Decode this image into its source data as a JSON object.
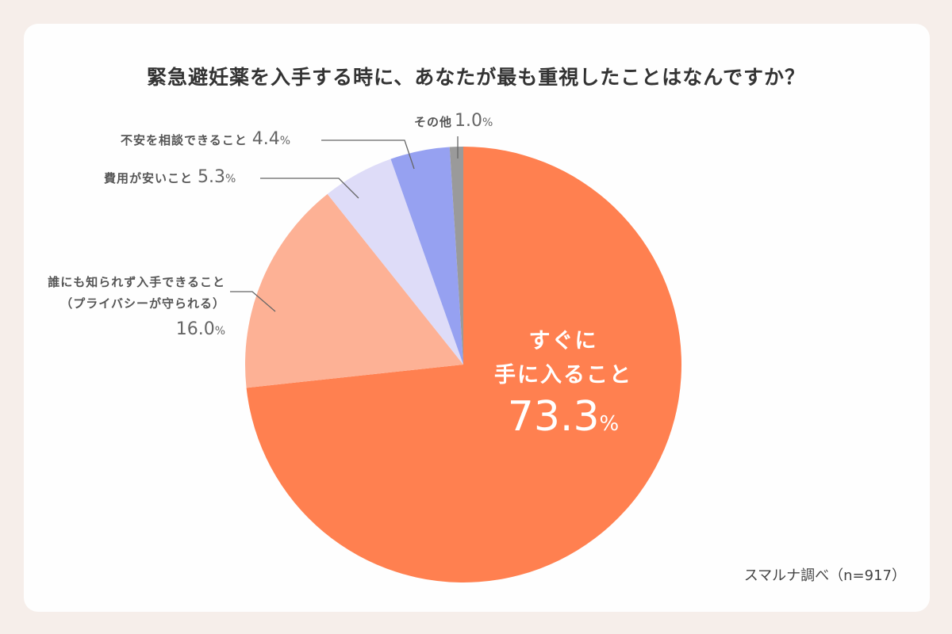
{
  "title": "緊急避妊薬を入手する時に、あなたが最も重視したことはなんですか？",
  "source": "スマルナ調べ（n=917）",
  "labels": {
    "main_line1": "すぐに",
    "main_line2": "手に入ること",
    "main_value": "73.3",
    "privacy_line1": "誰にも知られず入手できること",
    "privacy_line2": "（プライバシーが守られる）",
    "privacy_value": "16.0",
    "cheap": "費用が安いこと",
    "cheap_value": "5.3",
    "consult": "不安を相談できること",
    "consult_value": "4.4",
    "other": "その他",
    "other_value": "1.0",
    "percent": "%"
  },
  "colors": {
    "main": "#ff8050",
    "privacy": "#fdb195",
    "cheap": "#dedcf8",
    "consult": "#96a1f1",
    "other": "#9a9a9a"
  },
  "chart_data": {
    "type": "pie",
    "title": "緊急避妊薬を入手する時に、あなたが最も重視したことはなんですか？",
    "categories": [
      "すぐに手に入ること",
      "誰にも知られず入手できること（プライバシーが守られる）",
      "費用が安いこと",
      "不安を相談できること",
      "その他"
    ],
    "values": [
      73.3,
      16.0,
      5.3,
      4.4,
      1.0
    ],
    "unit": "%",
    "start_angle": "12 o'clock, clockwise",
    "colors": [
      "#ff8050",
      "#fdb195",
      "#dedcf8",
      "#96a1f1",
      "#9a9a9a"
    ],
    "annotation": "スマルナ調べ（n=917）"
  }
}
